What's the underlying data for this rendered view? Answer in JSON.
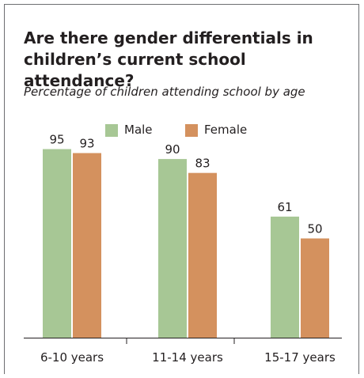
{
  "title": "Are there gender differentials in children’s current school attendance?",
  "subtitle": "Percentage of children attending school by age",
  "chart_data": {
    "type": "bar",
    "title": "Are there gender differentials in children’s current school attendance?",
    "subtitle": "Percentage of children attending school by age",
    "categories": [
      "6-10 years",
      "11-14 years",
      "15-17 years"
    ],
    "series": [
      {
        "name": "Male",
        "values": [
          95,
          90,
          61
        ],
        "color": "#a7c795"
      },
      {
        "name": "Female",
        "values": [
          93,
          83,
          50
        ],
        "color": "#d4915e"
      }
    ],
    "ylim": [
      0,
      100
    ],
    "grid": false,
    "legend": "top-center",
    "data_labels": true
  }
}
